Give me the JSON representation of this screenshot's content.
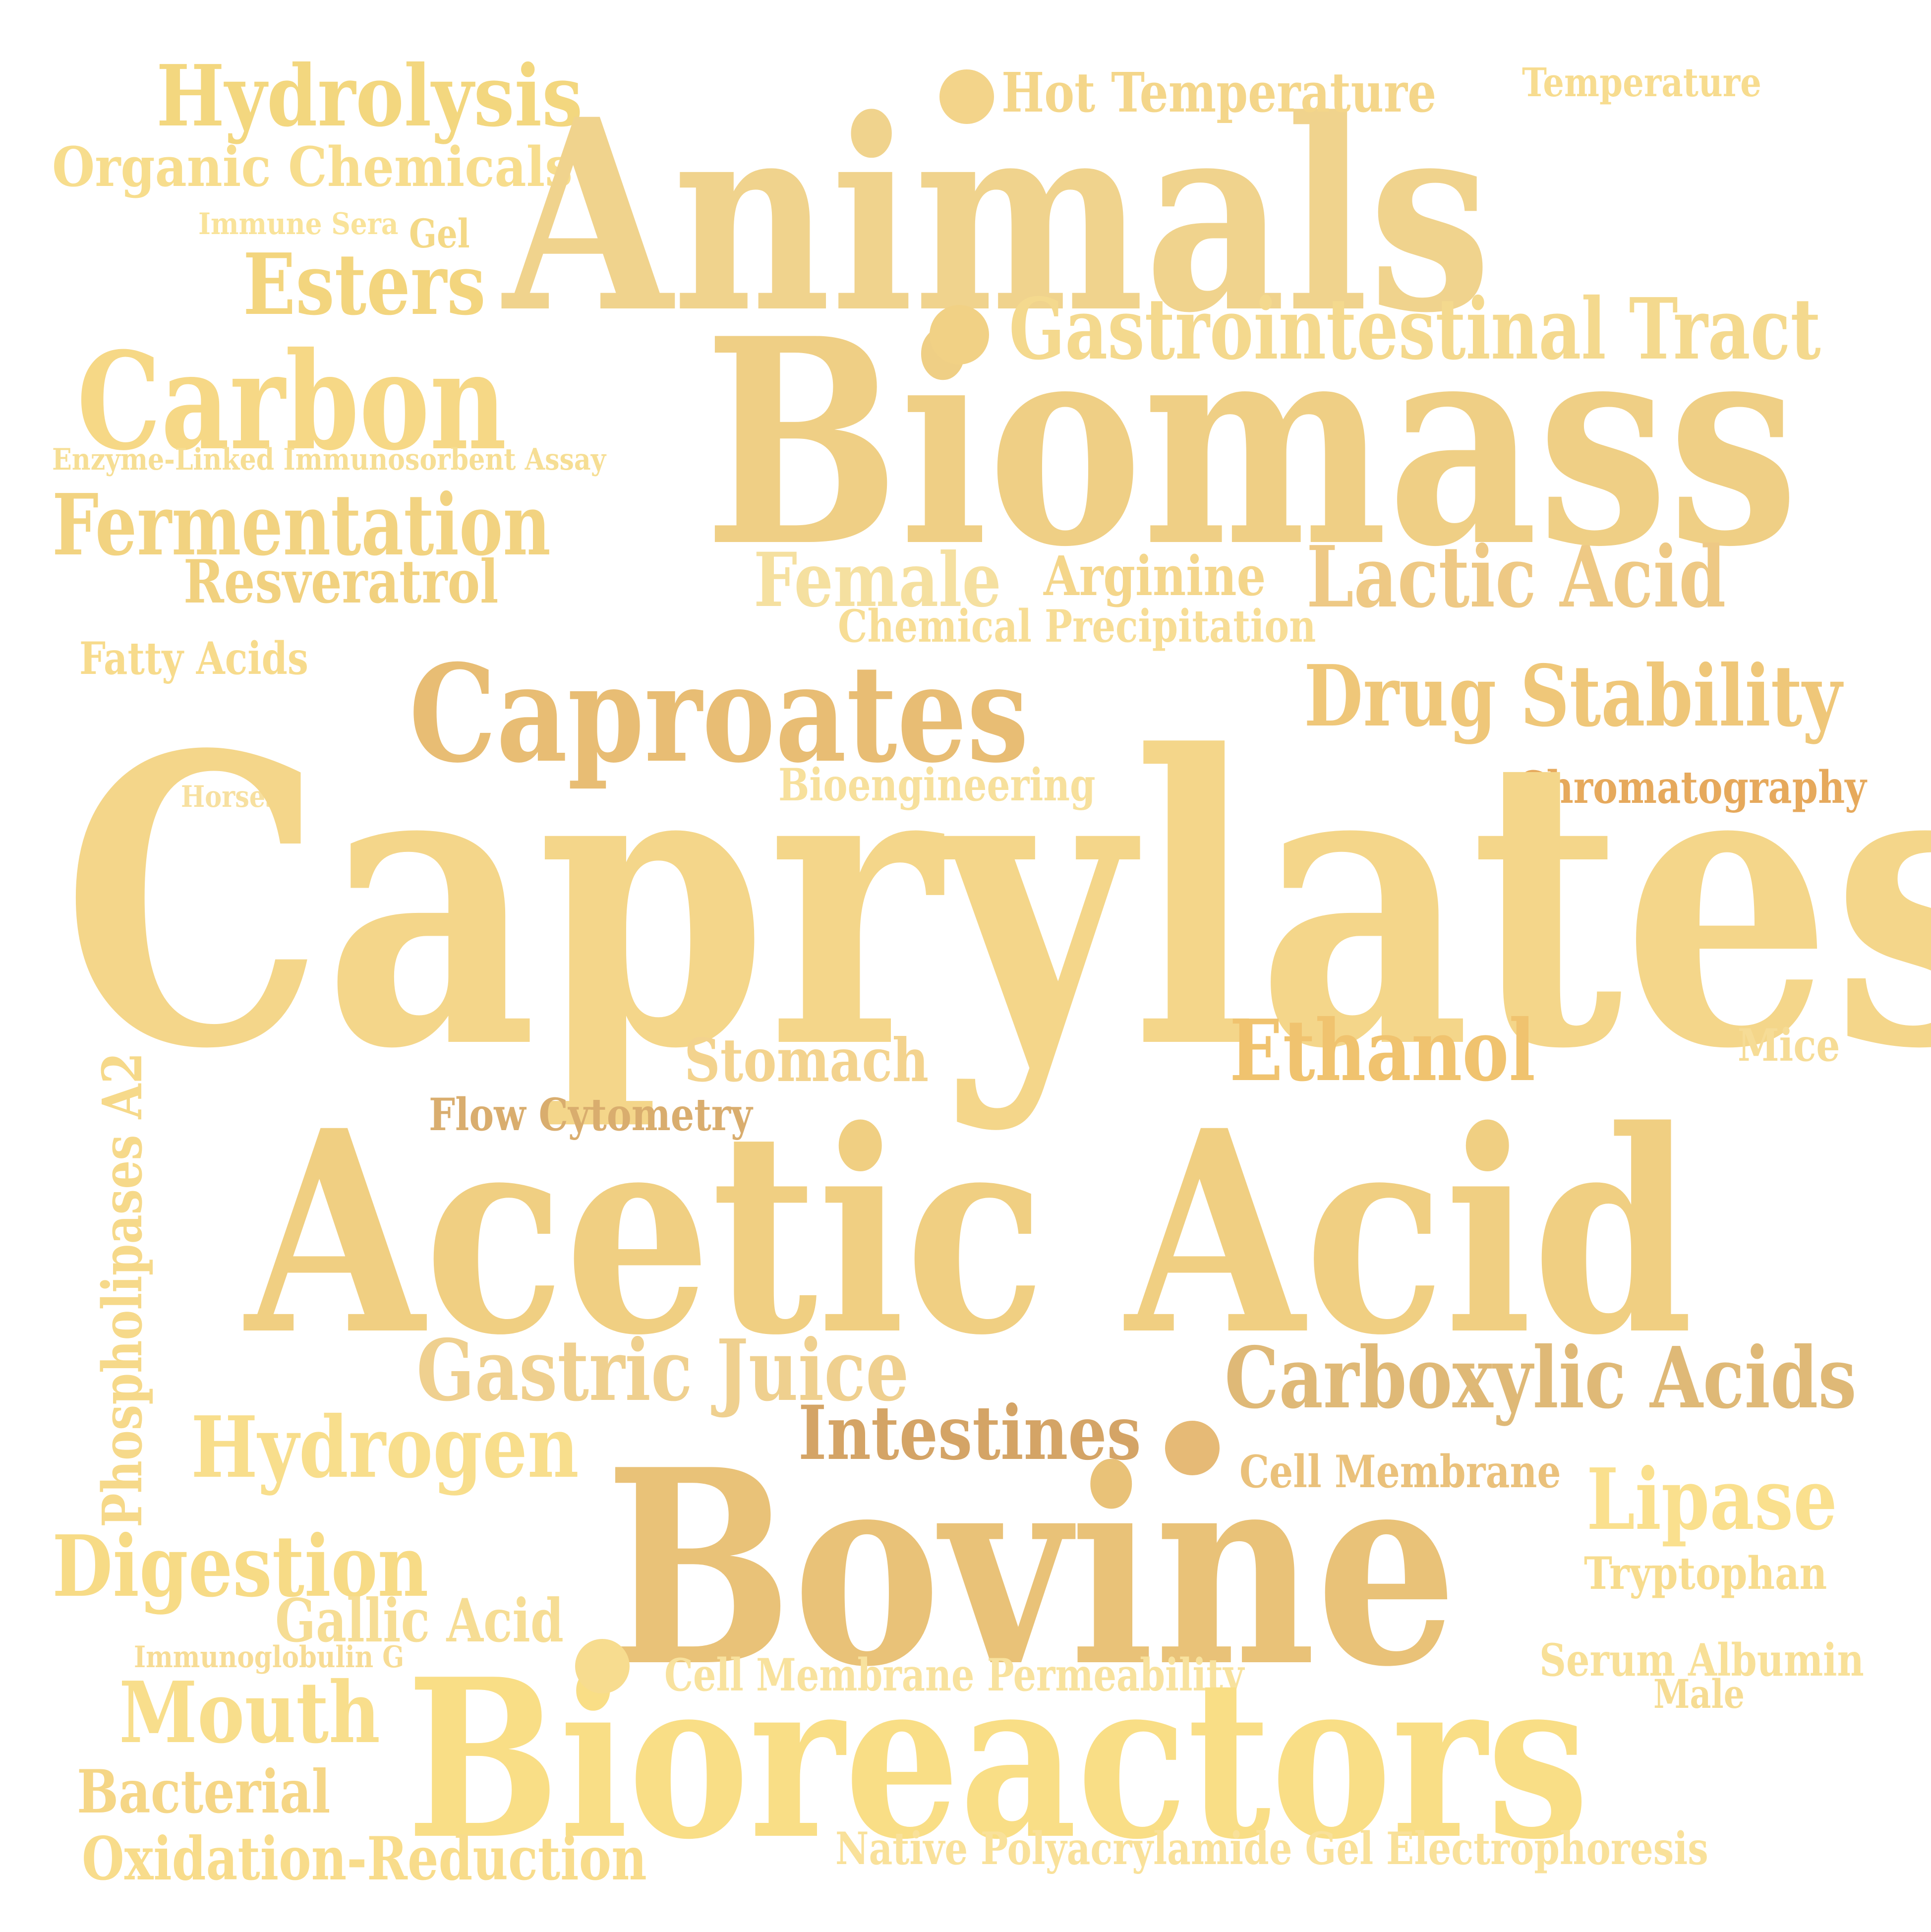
{
  "words": [
    {
      "text": "Hydrolysis",
      "color": "#F3D77F"
    },
    {
      "text": "Organic Chemicals",
      "color": "#F7DD8D"
    },
    {
      "text": "Immune Sera",
      "color": "#F9E39A"
    },
    {
      "text": "Gel",
      "color": "#F4D987"
    },
    {
      "text": "Esters",
      "color": "#F3D57E"
    },
    {
      "text": "Carbon",
      "color": "#F6D886"
    },
    {
      "text": "Enzyme-Linked Immunosorbent Assay",
      "color": "#F6DE94"
    },
    {
      "text": "Fermentation",
      "color": "#F2D381"
    },
    {
      "text": "Resveratrol",
      "color": "#F1D17F"
    },
    {
      "text": "Fatty Acids",
      "color": "#F7DB8C"
    },
    {
      "text": "Animals",
      "color": "#F0D38D"
    },
    {
      "text": "Hot Temperature",
      "color": "#F4D68A"
    },
    {
      "text": "Temperature",
      "color": "#F7DC8F"
    },
    {
      "text": "Gastrointestinal Tract",
      "color": "#F4D98E"
    },
    {
      "text": "Biomass",
      "color": "#EFCF85"
    },
    {
      "text": "Female",
      "color": "#F5E0A0"
    },
    {
      "text": "Arginine",
      "color": "#F4D68B"
    },
    {
      "text": "Chemical Precipitation",
      "color": "#F7DD95"
    },
    {
      "text": "Lactic Acid",
      "color": "#EEC985"
    },
    {
      "text": "Caproates",
      "color": "#E8BD74"
    },
    {
      "text": "Drug Stability",
      "color": "#EFC779"
    },
    {
      "text": "Bioengineering",
      "color": "#F7E09C"
    },
    {
      "text": "Chromatography",
      "color": "#E6A95C"
    },
    {
      "text": "Horses",
      "color": "#F7E0A0"
    },
    {
      "text": "Caprylates",
      "color": "#F4D68A"
    },
    {
      "text": "Stomach",
      "color": "#F3D38E"
    },
    {
      "text": "Ethanol",
      "color": "#F0C36F"
    },
    {
      "text": "Mice",
      "color": "#F6DC96"
    },
    {
      "text": "Flow Cytometry",
      "color": "#D9AD6E"
    },
    {
      "text": "Phospholipases A2",
      "color": "#F6D98A"
    },
    {
      "text": "Acetic Acid",
      "color": "#F0CF82"
    },
    {
      "text": "Gastric Juice",
      "color": "#EFD08F"
    },
    {
      "text": "Carboxylic Acids",
      "color": "#DFB977"
    },
    {
      "text": "Intestines",
      "color": "#D4A466"
    },
    {
      "text": "Hydrogen",
      "color": "#F8DE8C"
    },
    {
      "text": "Cell Membrane",
      "color": "#EAC17B"
    },
    {
      "text": "Bovine",
      "color": "#E9C278"
    },
    {
      "text": "Lipase",
      "color": "#FAE08E"
    },
    {
      "text": "Digestion",
      "color": "#F7DB86"
    },
    {
      "text": "Tryptophan",
      "color": "#F7DC8E"
    },
    {
      "text": "Gallic Acid",
      "color": "#F6DD94"
    },
    {
      "text": "Immunoglobulin G",
      "color": "#F7DC95"
    },
    {
      "text": "Serum Albumin",
      "color": "#F8E098"
    },
    {
      "text": "Cell Membrane Permeability",
      "color": "#F8E29E"
    },
    {
      "text": "Male",
      "color": "#F6DC93"
    },
    {
      "text": "Mouth",
      "color": "#F8DE8C"
    },
    {
      "text": "Bioreactors",
      "color": "#F9DE86"
    },
    {
      "text": "Bacterial",
      "color": "#F5D686"
    },
    {
      "text": "Oxidation-Reduction",
      "color": "#F8DC8B"
    },
    {
      "text": "Native Polyacrylamide Gel Electrophoresis",
      "color": "#F9E19A"
    }
  ],
  "dots": [
    {
      "color": "#F3D48A"
    },
    {
      "color": "#F1D185"
    },
    {
      "color": "#E6BA76"
    },
    {
      "color": "#F7DC8F"
    }
  ]
}
